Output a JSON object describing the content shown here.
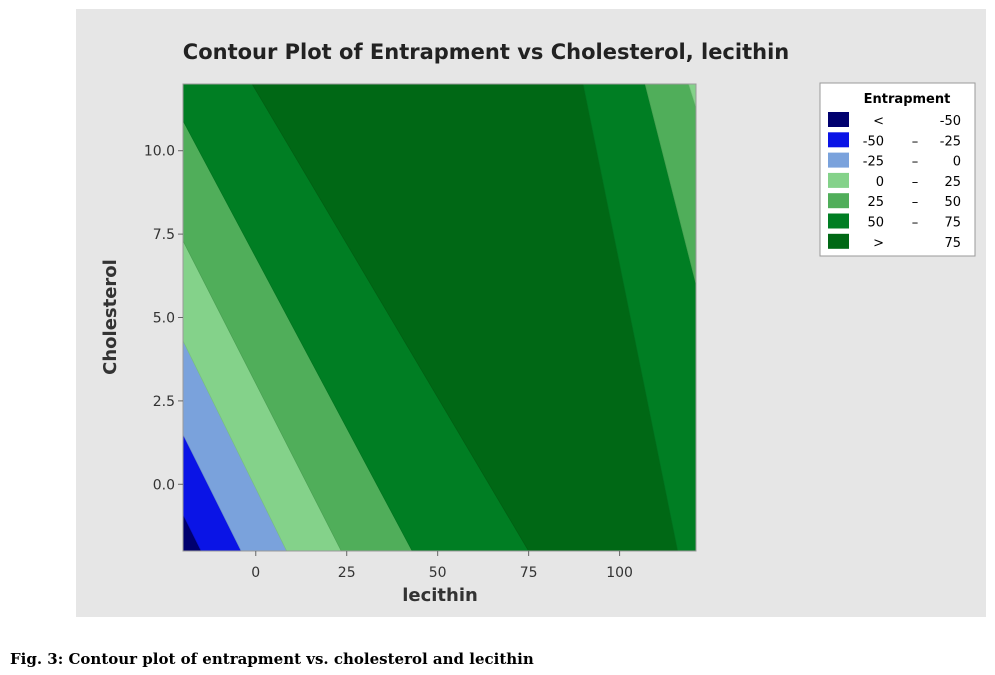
{
  "caption": "Fig. 3: Contour plot of entrapment vs. cholesterol and lecithin",
  "chart_data": {
    "type": "contour",
    "title": "Contour Plot of Entrapment vs Cholesterol, lecithin",
    "xlabel": "lecithin",
    "ylabel": "Cholesterol",
    "xlim": [
      -20,
      121
    ],
    "ylim": [
      -2,
      12
    ],
    "xticks": [
      0,
      25,
      50,
      75,
      100
    ],
    "yticks": [
      0.0,
      2.5,
      5.0,
      7.5,
      10.0
    ],
    "xtick_labels": [
      "0",
      "25",
      "50",
      "75",
      "100"
    ],
    "ytick_labels": [
      "0.0",
      "2.5",
      "5.0",
      "7.5",
      "10.0"
    ],
    "legend": {
      "title": "Entrapment",
      "placement": "right",
      "entries": [
        {
          "low": "<",
          "high": "-50",
          "dash": "",
          "color": "#00006e"
        },
        {
          "low": "-50",
          "high": "-25",
          "dash": "–",
          "color": "#0a14e6"
        },
        {
          "low": "-25",
          "high": "0",
          "dash": "–",
          "color": "#7aa2dc"
        },
        {
          "low": "0",
          "high": "25",
          "dash": "–",
          "color": "#84d28a"
        },
        {
          "low": "25",
          "high": "50",
          "dash": "–",
          "color": "#50ae5a"
        },
        {
          "low": "50",
          "high": "75",
          "dash": "–",
          "color": "#007e23"
        },
        {
          "low": ">",
          "high": "75",
          "dash": "",
          "color": "#006815"
        }
      ]
    },
    "boundaries": [
      {
        "level": -50,
        "points": [
          [
            -20,
            -0.9
          ],
          [
            -15,
            -2.0
          ]
        ]
      },
      {
        "level": -25,
        "points": [
          [
            -20,
            1.5
          ],
          [
            -4,
            -2.0
          ]
        ]
      },
      {
        "level": 0,
        "points": [
          [
            -20,
            4.3
          ],
          [
            8.5,
            -2.0
          ]
        ]
      },
      {
        "level": 25,
        "points": [
          [
            -20,
            7.3
          ],
          [
            23.5,
            -2.0
          ]
        ]
      },
      {
        "level": 50,
        "points": [
          [
            -20,
            10.9
          ],
          [
            43,
            -2.0
          ]
        ]
      },
      {
        "level": 75,
        "points": [
          [
            -1,
            12.0
          ],
          [
            75,
            -2.0
          ]
        ]
      },
      {
        "level": 75,
        "points": [
          [
            90,
            12.0
          ],
          [
            116,
            -2.0
          ]
        ]
      },
      {
        "level": 50,
        "points": [
          [
            107,
            12.0
          ],
          [
            121,
            6.0
          ]
        ]
      },
      {
        "level": 25,
        "points": [
          [
            119,
            12.0
          ],
          [
            121,
            11.3
          ]
        ]
      }
    ],
    "regions": [
      {
        "level": "< -50",
        "points": [
          [
            -20,
            -2.0
          ],
          [
            -15,
            -2.0
          ],
          [
            -20,
            -0.9
          ]
        ]
      },
      {
        "level": "-50 – -25",
        "points": [
          [
            -20,
            -0.9
          ],
          [
            -15,
            -2.0
          ],
          [
            -4,
            -2.0
          ],
          [
            -20,
            1.5
          ]
        ]
      },
      {
        "level": "-25 – 0",
        "points": [
          [
            -20,
            1.5
          ],
          [
            -4,
            -2.0
          ],
          [
            8.5,
            -2.0
          ],
          [
            -20,
            4.3
          ]
        ]
      },
      {
        "level": "0 – 25",
        "points": [
          [
            -20,
            4.3
          ],
          [
            8.5,
            -2.0
          ],
          [
            23.5,
            -2.0
          ],
          [
            -20,
            7.3
          ]
        ]
      },
      {
        "level": "25 – 50",
        "points": [
          [
            -20,
            7.3
          ],
          [
            23.5,
            -2.0
          ],
          [
            43,
            -2.0
          ],
          [
            -20,
            10.9
          ]
        ]
      },
      {
        "level": "50 – 75",
        "points": [
          [
            -20,
            10.9
          ],
          [
            43,
            -2.0
          ],
          [
            75,
            -2.0
          ],
          [
            -1,
            12.0
          ],
          [
            -20,
            12.0
          ]
        ]
      },
      {
        "level": "> 75",
        "points": [
          [
            -1,
            12.0
          ],
          [
            75,
            -2.0
          ],
          [
            116,
            -2.0
          ],
          [
            90,
            12.0
          ]
        ]
      },
      {
        "level": "50 – 75",
        "points": [
          [
            90,
            12.0
          ],
          [
            116,
            -2.0
          ],
          [
            121,
            -2.0
          ],
          [
            121,
            6.0
          ],
          [
            107,
            12.0
          ]
        ]
      },
      {
        "level": "25 – 50",
        "points": [
          [
            107,
            12.0
          ],
          [
            121,
            6.0
          ],
          [
            121,
            11.3
          ],
          [
            119,
            12.0
          ]
        ]
      },
      {
        "level": "0 – 25",
        "points": [
          [
            119,
            12.0
          ],
          [
            121,
            11.3
          ],
          [
            121,
            12.0
          ]
        ]
      }
    ],
    "grid": false
  }
}
